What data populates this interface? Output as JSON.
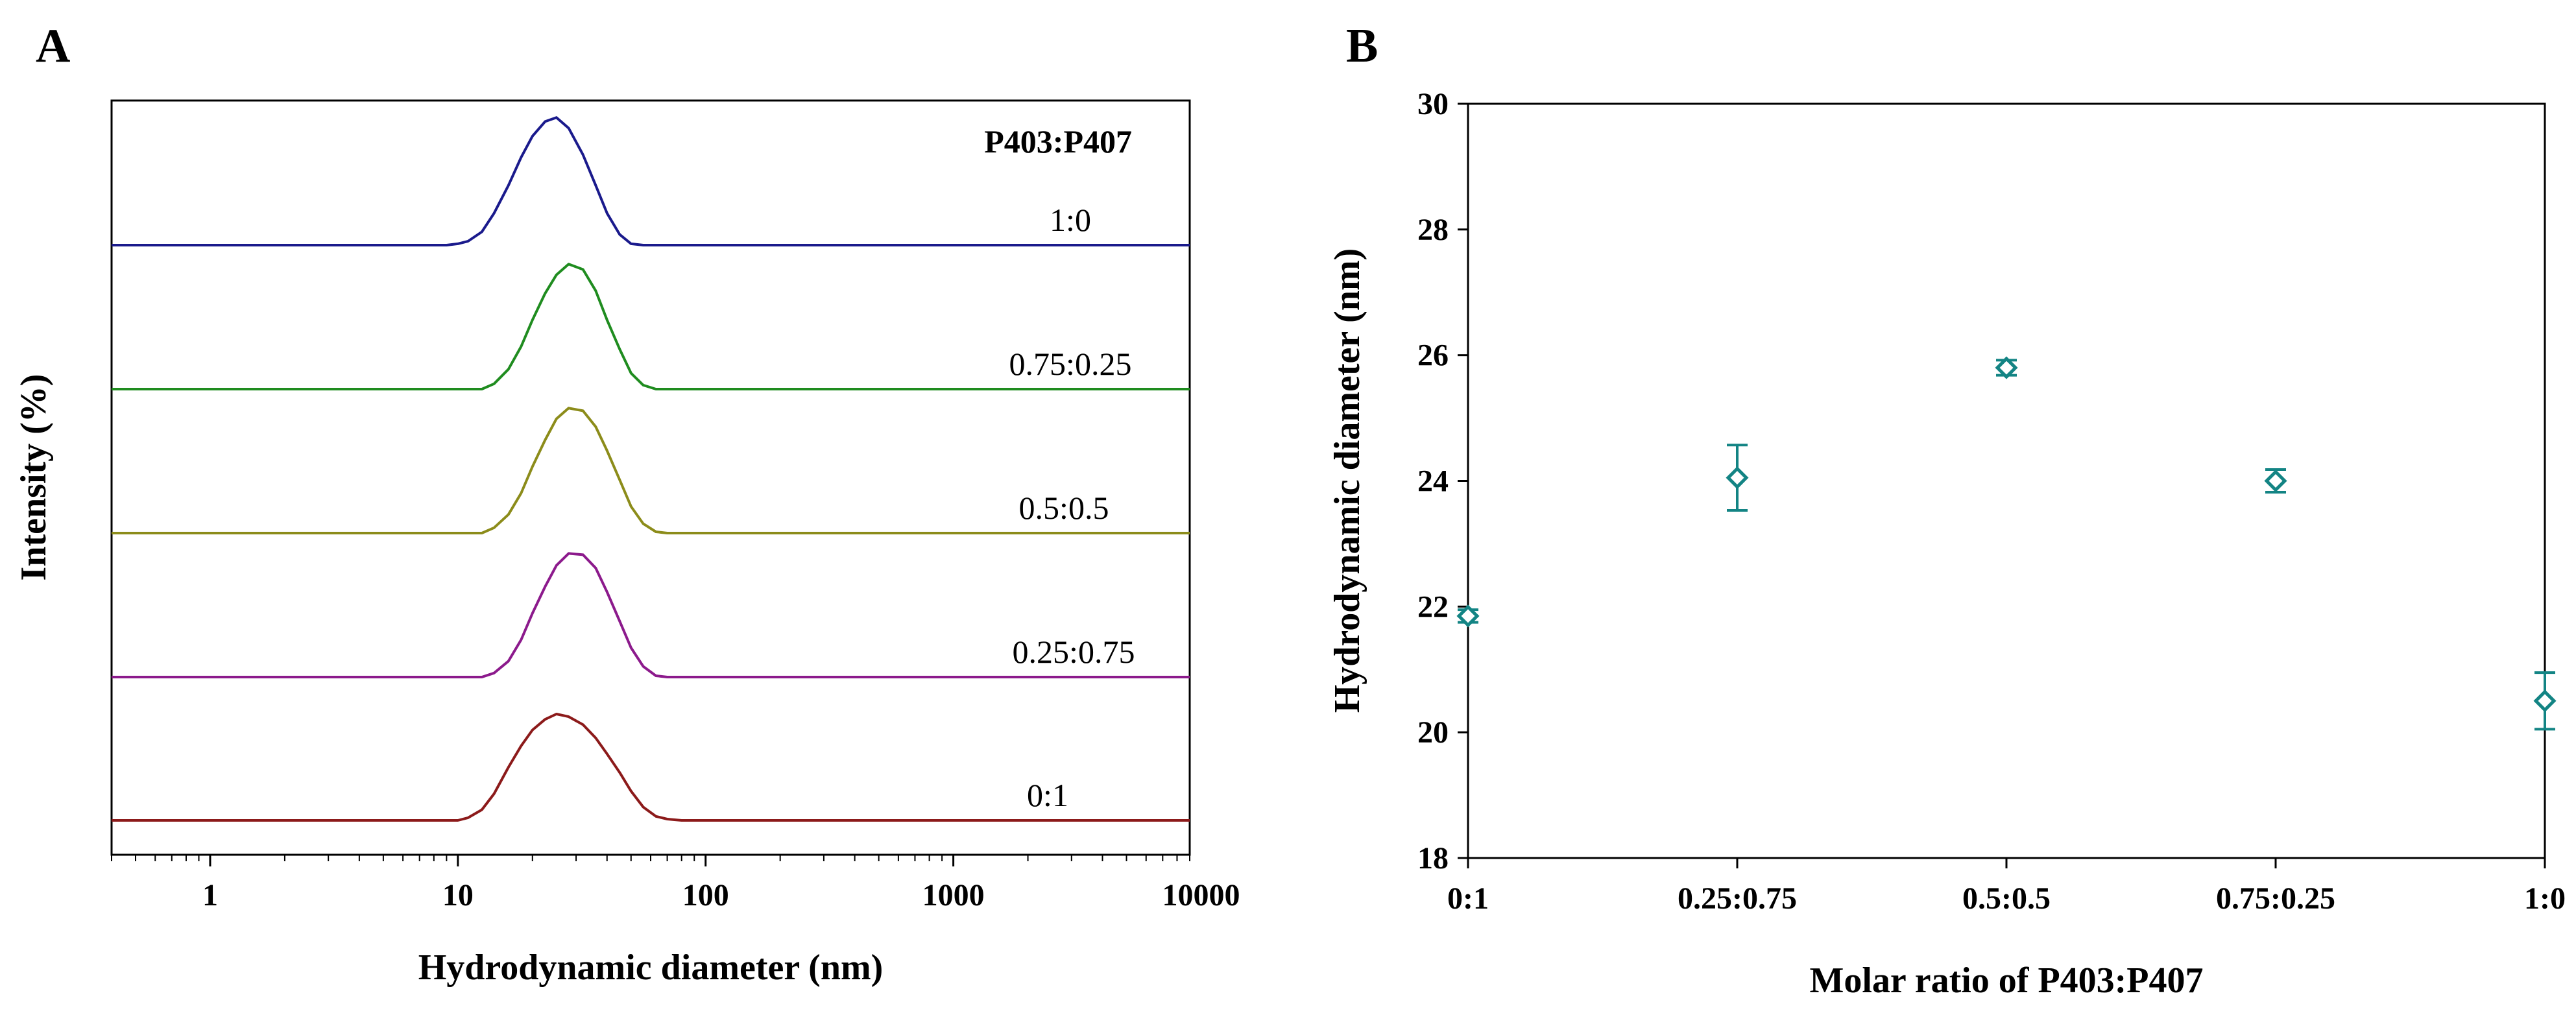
{
  "figure": {
    "panel_a_letter": "A",
    "panel_b_letter": "B"
  },
  "chart_data": [
    {
      "type": "line",
      "panel": "A",
      "title": "",
      "xlabel": "Hydrodynamic diameter (nm)",
      "ylabel": "Intensity (%)",
      "xscale": "log",
      "xlim": [
        0.4,
        9000
      ],
      "xticks": [
        1,
        10,
        100,
        1000,
        10000
      ],
      "xtick_labels": [
        "1",
        "10",
        "100",
        "1000",
        "10000"
      ],
      "legend_title": "P403:P407",
      "curve_x": [
        0.4,
        8,
        9,
        10,
        11,
        12.5,
        14,
        16,
        18,
        20,
        22.5,
        25,
        28,
        32,
        36,
        40,
        45,
        50,
        56,
        63,
        70,
        80,
        90,
        9000
      ],
      "series": [
        {
          "name": "1:0",
          "color": "#1a1a8c",
          "values": [
            0,
            0,
            0,
            1,
            3,
            10,
            24,
            45,
            66,
            82,
            93,
            96,
            88,
            68,
            45,
            24,
            8,
            1,
            0,
            0,
            0,
            0,
            0,
            0
          ]
        },
        {
          "name": "0.75:0.25",
          "color": "#1f8c1f",
          "values": [
            0,
            0,
            0,
            0,
            0,
            0,
            4,
            15,
            32,
            52,
            72,
            86,
            94,
            90,
            74,
            52,
            30,
            12,
            3,
            0,
            0,
            0,
            0,
            0
          ]
        },
        {
          "name": "0.5:0.5",
          "color": "#8c8c1a",
          "values": [
            0,
            0,
            0,
            0,
            0,
            0,
            4,
            14,
            30,
            50,
            70,
            86,
            94,
            92,
            80,
            62,
            40,
            20,
            7,
            1,
            0,
            0,
            0,
            0
          ]
        },
        {
          "name": "0.25:0.75",
          "color": "#8c1a8c",
          "values": [
            0,
            0,
            0,
            0,
            0,
            0,
            3,
            12,
            28,
            48,
            68,
            84,
            93,
            92,
            82,
            64,
            42,
            22,
            8,
            1,
            0,
            0,
            0,
            0
          ]
        },
        {
          "name": "0:1",
          "color": "#8c1a1a",
          "values": [
            0,
            0,
            0,
            0,
            2,
            8,
            20,
            40,
            56,
            68,
            76,
            80,
            78,
            72,
            62,
            50,
            36,
            22,
            10,
            3,
            1,
            0,
            0,
            0
          ]
        }
      ]
    },
    {
      "type": "scatter",
      "panel": "B",
      "title": "",
      "xlabel": "Molar ratio of P403:P407",
      "ylabel": "Hydrodynamic diameter (nm)",
      "categories": [
        "0:1",
        "0.25:0.75",
        "0.5:0.5",
        "0.75:0.25",
        "1:0"
      ],
      "values": [
        21.85,
        24.05,
        25.8,
        24.0,
        20.5
      ],
      "errors": [
        0.1,
        0.52,
        0.12,
        0.18,
        0.45
      ],
      "ylim": [
        18,
        30
      ],
      "yticks": [
        18,
        20,
        22,
        24,
        26,
        28,
        30
      ],
      "ytick_labels": [
        "18",
        "20",
        "22",
        "24",
        "26",
        "28",
        "30"
      ],
      "marker": "diamond-open",
      "color": "#138484",
      "grid": false
    }
  ]
}
